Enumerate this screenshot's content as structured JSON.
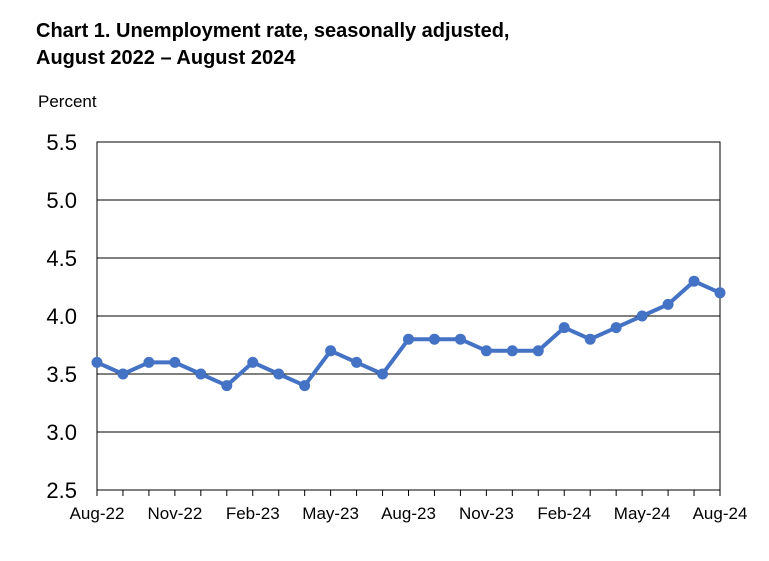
{
  "chart_data": {
    "type": "line",
    "title_line1": "Chart 1. Unemployment rate, seasonally adjusted,",
    "title_line2": "August 2022 – August 2024",
    "ylabel": "Percent",
    "xlabel": "",
    "ylim": [
      2.5,
      5.5
    ],
    "yticks": [
      "2.5",
      "3.0",
      "3.5",
      "4.0",
      "4.5",
      "5.0",
      "5.5"
    ],
    "x_tick_labels": [
      "Aug-22",
      "Nov-22",
      "Feb-23",
      "May-23",
      "Aug-23",
      "Nov-23",
      "Feb-24",
      "May-24",
      "Aug-24"
    ],
    "x": [
      "Aug-22",
      "Sep-22",
      "Oct-22",
      "Nov-22",
      "Dec-22",
      "Jan-23",
      "Feb-23",
      "Mar-23",
      "Apr-23",
      "May-23",
      "Jun-23",
      "Jul-23",
      "Aug-23",
      "Sep-23",
      "Oct-23",
      "Nov-23",
      "Dec-23",
      "Jan-24",
      "Feb-24",
      "Mar-24",
      "Apr-24",
      "May-24",
      "Jun-24",
      "Jul-24",
      "Aug-24"
    ],
    "series": [
      {
        "name": "Unemployment rate",
        "color": "#4472c4",
        "values": [
          3.6,
          3.5,
          3.6,
          3.6,
          3.5,
          3.4,
          3.6,
          3.5,
          3.4,
          3.7,
          3.6,
          3.5,
          3.8,
          3.8,
          3.8,
          3.7,
          3.7,
          3.7,
          3.9,
          3.8,
          3.9,
          4.0,
          4.1,
          4.3,
          4.2
        ]
      }
    ],
    "grid": true,
    "legend": "none"
  }
}
